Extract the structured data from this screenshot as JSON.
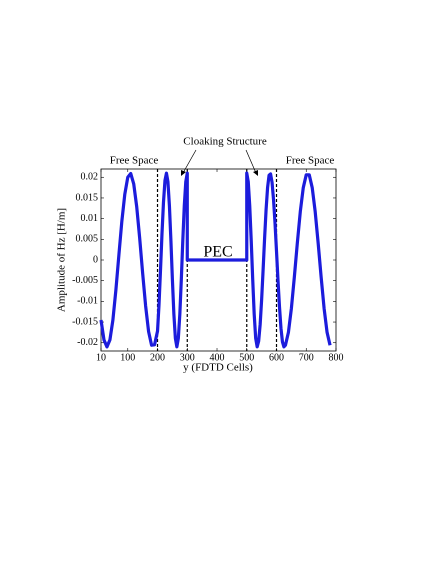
{
  "chart_data": {
    "type": "line",
    "xlabel": "y (FDTD Cells)",
    "ylabel": "Amplitude of Hz [H/m]",
    "annotations": [
      "Free Space",
      "Cloaking Structure",
      "Free Space",
      "PEC"
    ],
    "xlim": [
      10,
      800
    ],
    "xticks": [
      10,
      100,
      200,
      300,
      400,
      500,
      600,
      700,
      800
    ],
    "ylim": [
      -0.022,
      0.022
    ],
    "yticks": [
      -0.02,
      -0.015,
      -0.01,
      -0.005,
      0,
      0.005,
      0.01,
      0.015,
      0.02
    ],
    "vlines": [
      200,
      300,
      500,
      600
    ],
    "x": [
      10,
      20,
      30,
      40,
      50,
      60,
      70,
      80,
      90,
      100,
      110,
      120,
      130,
      140,
      150,
      160,
      170,
      180,
      190,
      200,
      205,
      210,
      215,
      220,
      225,
      230,
      235,
      240,
      245,
      250,
      255,
      260,
      265,
      270,
      275,
      280,
      285,
      290,
      295,
      300,
      300,
      500,
      500,
      505,
      510,
      515,
      520,
      525,
      530,
      535,
      540,
      545,
      550,
      555,
      560,
      565,
      570,
      575,
      580,
      585,
      590,
      595,
      600,
      605,
      610,
      615,
      620,
      625,
      630,
      640,
      650,
      660,
      670,
      680,
      690,
      700,
      710,
      720,
      730,
      740,
      750,
      760,
      770,
      780
    ],
    "series": [
      {
        "color": "#1c1cdc",
        "values": [
          -0.0145,
          -0.0193,
          -0.021,
          -0.0193,
          -0.0145,
          -0.0073,
          0.0011,
          0.0093,
          0.0159,
          0.02,
          0.0209,
          0.0184,
          0.0129,
          0.0053,
          -0.0032,
          -0.0111,
          -0.0173,
          -0.0206,
          -0.0205,
          -0.0172,
          -0.0108,
          -0.0025,
          0.0063,
          0.0139,
          0.0192,
          0.021,
          0.0189,
          0.0131,
          0.0047,
          -0.0047,
          -0.0131,
          -0.0189,
          -0.021,
          -0.0189,
          -0.0131,
          -0.0047,
          0.0047,
          0.0131,
          0.0189,
          0.021,
          0,
          0,
          0.021,
          0.0189,
          0.0131,
          0.0047,
          -0.0047,
          -0.0131,
          -0.0189,
          -0.021,
          -0.0196,
          -0.0156,
          -0.0096,
          -0.0023,
          0.0053,
          0.0122,
          0.0175,
          0.0205,
          0.0208,
          0.0188,
          0.0146,
          0.0089,
          0.0021,
          -0.0049,
          -0.0113,
          -0.0165,
          -0.0198,
          -0.021,
          -0.0206,
          -0.0175,
          -0.0117,
          -0.0041,
          0.0041,
          0.0117,
          0.0175,
          0.0206,
          0.0206,
          0.0175,
          0.0117,
          0.0041,
          -0.0041,
          -0.0117,
          -0.0175,
          -0.0206
        ]
      }
    ]
  }
}
